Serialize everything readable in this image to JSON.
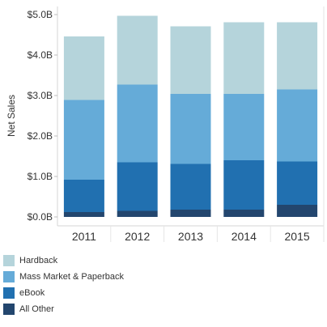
{
  "chart_data": {
    "type": "bar",
    "stacked": true,
    "categories": [
      "2011",
      "2012",
      "2013",
      "2014",
      "2015"
    ],
    "ylabel": "Net Sales",
    "ylim": [
      0,
      5.0
    ],
    "yticks": [
      {
        "value": 0,
        "label": "$0.0B"
      },
      {
        "value": 1,
        "label": "$1.0B"
      },
      {
        "value": 2,
        "label": "$2.0B"
      },
      {
        "value": 3,
        "label": "$3.0B"
      },
      {
        "value": 4,
        "label": "$4.0B"
      },
      {
        "value": 5,
        "label": "$5.0B"
      }
    ],
    "series": [
      {
        "name": "All Other",
        "color": "#23466e",
        "values": [
          0.12,
          0.15,
          0.18,
          0.18,
          0.3
        ]
      },
      {
        "name": "eBook",
        "color": "#2170b0",
        "values": [
          0.8,
          1.2,
          1.13,
          1.22,
          1.07
        ]
      },
      {
        "name": "Mass Market & Paperback",
        "color": "#65abd8",
        "values": [
          1.97,
          1.92,
          1.73,
          1.64,
          1.78
        ]
      },
      {
        "name": "Hardback",
        "color": "#b5d4db",
        "values": [
          1.57,
          1.7,
          1.67,
          1.77,
          1.66
        ]
      }
    ],
    "legend": {
      "position": "bottom-left",
      "order": [
        "Hardback",
        "Mass Market & Paperback",
        "eBook",
        "All Other"
      ]
    },
    "grid": false
  }
}
